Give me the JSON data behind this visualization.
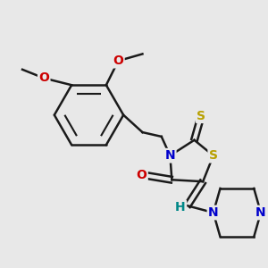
{
  "background_color": "#e8e8e8",
  "bond_color": "#1a1a1a",
  "bond_width": 1.8,
  "fig_width": 3.0,
  "fig_height": 3.0,
  "dpi": 100,
  "atom_colors": {
    "N": "#0000cc",
    "O": "#cc0000",
    "S_thioxo": "#b8a000",
    "S_ring": "#b8a000",
    "H": "#008888",
    "C": "#1a1a1a"
  }
}
